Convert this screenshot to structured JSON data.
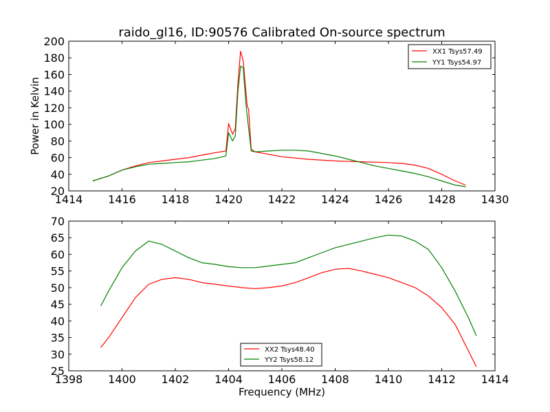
{
  "chart_data": [
    {
      "type": "line",
      "title": "raido_gl16, ID:90576 Calibrated On-source spectrum",
      "xlabel": "",
      "ylabel": "Power in Kelvin",
      "xlim": [
        1414,
        1430
      ],
      "ylim": [
        20,
        200
      ],
      "xticks": [
        "1414",
        "1416",
        "1418",
        "1420",
        "1422",
        "1424",
        "1426",
        "1428",
        "1430"
      ],
      "yticks": [
        "20",
        "40",
        "60",
        "80",
        "100",
        "120",
        "140",
        "160",
        "180",
        "200"
      ],
      "grid": false,
      "legend_position": "top-right",
      "series": [
        {
          "name": "XX1 Tsys57.49",
          "color": "#ff0000",
          "points": [
            [
              1414.9,
              32
            ],
            [
              1415.5,
              38
            ],
            [
              1416,
              45
            ],
            [
              1416.5,
              50
            ],
            [
              1417,
              54
            ],
            [
              1417.5,
              56
            ],
            [
              1418,
              58
            ],
            [
              1418.5,
              60
            ],
            [
              1419,
              63
            ],
            [
              1419.5,
              66
            ],
            [
              1419.9,
              68
            ],
            [
              1420.0,
              101
            ],
            [
              1420.15,
              88
            ],
            [
              1420.25,
              95
            ],
            [
              1420.35,
              150
            ],
            [
              1420.45,
              188
            ],
            [
              1420.55,
              176
            ],
            [
              1420.7,
              122
            ],
            [
              1420.75,
              118
            ],
            [
              1420.85,
              70
            ],
            [
              1421,
              67
            ],
            [
              1421.5,
              64
            ],
            [
              1422,
              61
            ],
            [
              1423,
              58
            ],
            [
              1424,
              56
            ],
            [
              1425,
              55
            ],
            [
              1426,
              54
            ],
            [
              1426.5,
              53
            ],
            [
              1427,
              51
            ],
            [
              1427.5,
              47
            ],
            [
              1428,
              40
            ],
            [
              1428.5,
              32
            ],
            [
              1428.9,
              27
            ]
          ]
        },
        {
          "name": "YY1 Tsys54.97",
          "color": "#008000",
          "points": [
            [
              1414.9,
              32
            ],
            [
              1415.5,
              38
            ],
            [
              1416,
              45
            ],
            [
              1416.5,
              49
            ],
            [
              1417,
              52
            ],
            [
              1417.5,
              53
            ],
            [
              1418,
              54
            ],
            [
              1418.5,
              55
            ],
            [
              1419,
              57
            ],
            [
              1419.5,
              59
            ],
            [
              1419.9,
              62
            ],
            [
              1420.0,
              90
            ],
            [
              1420.15,
              80
            ],
            [
              1420.25,
              86
            ],
            [
              1420.35,
              140
            ],
            [
              1420.45,
              170
            ],
            [
              1420.55,
              168
            ],
            [
              1420.65,
              125
            ],
            [
              1420.7,
              110
            ],
            [
              1420.85,
              68
            ],
            [
              1421,
              67
            ],
            [
              1421.5,
              68
            ],
            [
              1422,
              69
            ],
            [
              1422.5,
              69
            ],
            [
              1423,
              68
            ],
            [
              1423.5,
              65
            ],
            [
              1424,
              62
            ],
            [
              1424.5,
              58
            ],
            [
              1425,
              54
            ],
            [
              1425.5,
              50
            ],
            [
              1426,
              47
            ],
            [
              1426.5,
              44
            ],
            [
              1427,
              41
            ],
            [
              1427.5,
              37
            ],
            [
              1428,
              32
            ],
            [
              1428.5,
              27
            ],
            [
              1428.9,
              25
            ]
          ]
        }
      ]
    },
    {
      "type": "line",
      "title": "",
      "xlabel": "Frequency (MHz)",
      "ylabel": "",
      "xlim": [
        1398,
        1414
      ],
      "ylim": [
        25,
        70
      ],
      "xticks": [
        "1398",
        "1400",
        "1402",
        "1404",
        "1406",
        "1408",
        "1410",
        "1412",
        "1414"
      ],
      "yticks": [
        "25",
        "30",
        "35",
        "40",
        "45",
        "50",
        "55",
        "60",
        "65",
        "70"
      ],
      "grid": false,
      "legend_position": "bottom-center",
      "series": [
        {
          "name": "XX2 Tsys48.40",
          "color": "#ff0000",
          "points": [
            [
              1399.2,
              32
            ],
            [
              1399.5,
              35
            ],
            [
              1400,
              41
            ],
            [
              1400.5,
              47
            ],
            [
              1401,
              51
            ],
            [
              1401.5,
              52.5
            ],
            [
              1402,
              53
            ],
            [
              1402.5,
              52.5
            ],
            [
              1403,
              51.5
            ],
            [
              1403.5,
              51
            ],
            [
              1404,
              50.5
            ],
            [
              1404.5,
              50
            ],
            [
              1405,
              49.7
            ],
            [
              1405.5,
              50
            ],
            [
              1406,
              50.5
            ],
            [
              1406.5,
              51.5
            ],
            [
              1407,
              53
            ],
            [
              1407.5,
              54.5
            ],
            [
              1408,
              55.5
            ],
            [
              1408.5,
              55.8
            ],
            [
              1409,
              55
            ],
            [
              1409.5,
              54
            ],
            [
              1410,
              53
            ],
            [
              1410.5,
              51.5
            ],
            [
              1411,
              50
            ],
            [
              1411.5,
              47.5
            ],
            [
              1412,
              44
            ],
            [
              1412.5,
              39
            ],
            [
              1413,
              31
            ],
            [
              1413.3,
              26.2
            ]
          ]
        },
        {
          "name": "YY2 Tsys58.12",
          "color": "#008000",
          "points": [
            [
              1399.2,
              44.5
            ],
            [
              1399.5,
              49
            ],
            [
              1400,
              56
            ],
            [
              1400.5,
              61
            ],
            [
              1401,
              64
            ],
            [
              1401.5,
              63
            ],
            [
              1402,
              61
            ],
            [
              1402.5,
              59
            ],
            [
              1403,
              57.5
            ],
            [
              1403.5,
              57
            ],
            [
              1404,
              56.3
            ],
            [
              1404.5,
              56
            ],
            [
              1405,
              56
            ],
            [
              1405.5,
              56.5
            ],
            [
              1406,
              57
            ],
            [
              1406.5,
              57.5
            ],
            [
              1407,
              59
            ],
            [
              1407.5,
              60.5
            ],
            [
              1408,
              62
            ],
            [
              1408.5,
              63
            ],
            [
              1409,
              64
            ],
            [
              1409.5,
              65
            ],
            [
              1410,
              65.8
            ],
            [
              1410.5,
              65.5
            ],
            [
              1411,
              64
            ],
            [
              1411.5,
              61.5
            ],
            [
              1412,
              56
            ],
            [
              1412.5,
              49
            ],
            [
              1413,
              41
            ],
            [
              1413.3,
              35.5
            ]
          ]
        }
      ]
    }
  ]
}
